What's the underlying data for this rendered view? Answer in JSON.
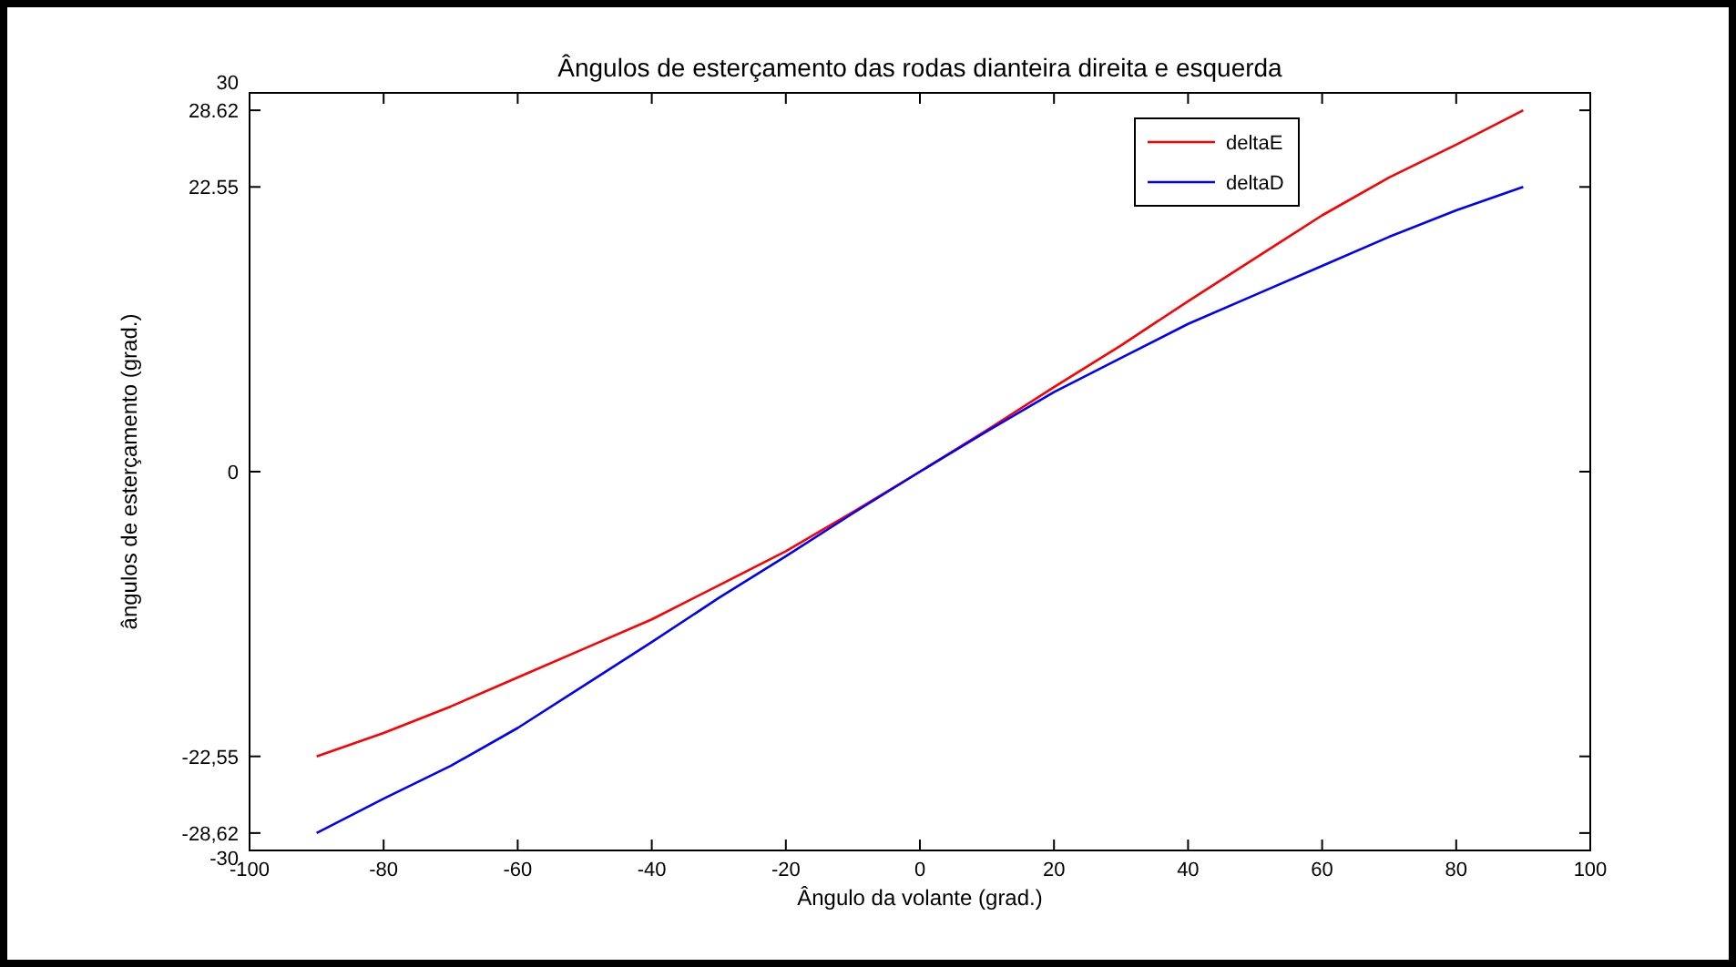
{
  "chart_data": {
    "type": "line",
    "title": "Ângulos de esterçamento das rodas dianteira direita e esquerda",
    "xlabel": "Ângulo da volante (grad.)",
    "ylabel": "ângulos de esterçamento (grad.)",
    "x": [
      -90,
      -80,
      -70,
      -60,
      -50,
      -40,
      -30,
      -20,
      -10,
      0,
      10,
      20,
      30,
      40,
      50,
      60,
      70,
      80,
      90
    ],
    "series": [
      {
        "name": "deltaE",
        "color": "#ff0000",
        "values": [
          -22.55,
          -20.7,
          -18.6,
          -16.3,
          -14.0,
          -11.7,
          -9.0,
          -6.3,
          -3.2,
          0,
          3.3,
          6.7,
          10.0,
          13.5,
          16.9,
          20.3,
          23.3,
          25.9,
          28.62
        ]
      },
      {
        "name": "deltaD",
        "color": "#0000ff",
        "values": [
          -28.62,
          -25.9,
          -23.3,
          -20.3,
          -16.9,
          -13.5,
          -10.0,
          -6.7,
          -3.3,
          0,
          3.2,
          6.3,
          9.0,
          11.7,
          14.0,
          16.3,
          18.6,
          20.7,
          22.55
        ]
      }
    ],
    "xlim": [
      -100,
      100
    ],
    "xticks": [
      -100,
      -80,
      -60,
      -40,
      -20,
      0,
      20,
      40,
      60,
      80,
      100
    ],
    "ylim": [
      -30,
      30
    ],
    "yticks": [
      -30,
      {
        "value": -28.62,
        "label": "-28,62"
      },
      {
        "value": -22.55,
        "label": "-22,55"
      },
      0,
      22.55,
      28.62,
      30
    ],
    "legend": "top right",
    "grid": false,
    "marker": "none",
    "line_style": "solid"
  }
}
